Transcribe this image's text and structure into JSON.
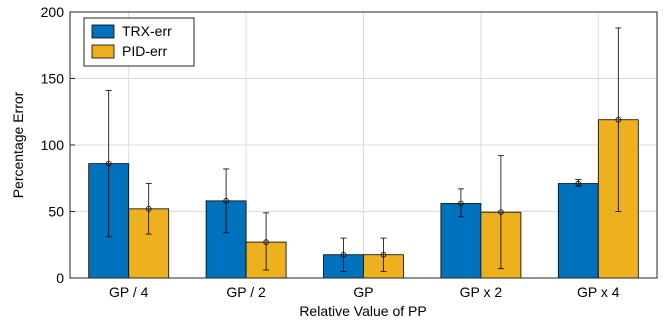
{
  "chart_data": {
    "type": "bar",
    "xlabel": "Relative Value of PP",
    "ylabel": "Percentage Error",
    "ylim": [
      0,
      200
    ],
    "yticks": [
      0,
      50,
      100,
      150,
      200
    ],
    "grid": true,
    "legend_position": "top-left",
    "categories": [
      "GP / 4",
      "GP / 2",
      "GP",
      "GP x 2",
      "GP x 4"
    ],
    "series": [
      {
        "name": "TRX-err",
        "color": "#0072BD",
        "values": [
          86,
          58,
          17.5,
          56,
          71
        ],
        "error_low": [
          31,
          34,
          5,
          46,
          69
        ],
        "error_high": [
          141,
          82,
          30,
          67,
          74
        ]
      },
      {
        "name": "PID-err",
        "color": "#EDB120",
        "values": [
          52,
          27,
          17.5,
          49.5,
          119
        ],
        "error_low": [
          33,
          6,
          5,
          7,
          50
        ],
        "error_high": [
          71,
          49,
          30,
          92,
          188
        ]
      }
    ]
  }
}
